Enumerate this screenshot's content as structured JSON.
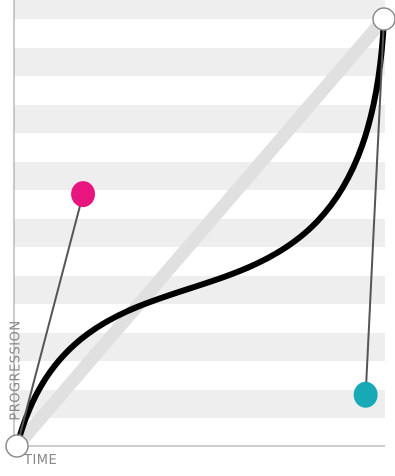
{
  "editor": {
    "x_axis_label": "TIME",
    "y_axis_label": "PROGRESSION"
  },
  "curve": {
    "start": [
      0,
      0
    ],
    "control1": [
      0.18,
      0.59
    ],
    "control2": [
      0.95,
      0.12
    ],
    "end": [
      1,
      1
    ]
  },
  "colors": {
    "curve": "#000000",
    "linear_reference": "#e0e0e0",
    "stripe": "#eeeeee",
    "control1_handle": "#e8157f",
    "control2_handle": "#17a9b6",
    "endpoint_fill": "#ffffff",
    "endpoint_stroke": "#8a8a8a",
    "axis": "#9a9a9a",
    "handle_line": "#555555"
  }
}
